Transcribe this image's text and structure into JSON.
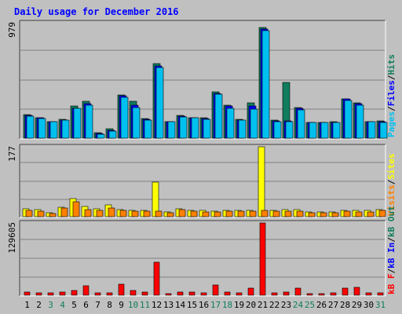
{
  "colors": {
    "frame_bg": "#c0c0c0",
    "plot_bg": "#c0c0c0",
    "grid": "#808080",
    "title": "#0000ff",
    "pages": "#107d5e",
    "files": "#0000ff",
    "hits": "#00c0f0",
    "visits": "#ffff00",
    "sites": "#ff8000",
    "kbf": "#ff0000",
    "kbin": "#0000ff",
    "kbout": "#107d5e",
    "day": "#000000",
    "weekend": "#107d5e"
  },
  "chart_data": [
    {
      "type": "bar",
      "title": "Daily usage for December 2016",
      "days": [
        "1",
        "2",
        "3",
        "4",
        "5",
        "6",
        "7",
        "8",
        "9",
        "10",
        "11",
        "12",
        "13",
        "14",
        "15",
        "16",
        "17",
        "18",
        "19",
        "20",
        "21",
        "22",
        "23",
        "24",
        "25",
        "26",
        "27",
        "28",
        "29",
        "30",
        "31"
      ],
      "weekend_days": [
        "3",
        "4",
        "10",
        "11",
        "17",
        "18",
        "24",
        "25",
        "31"
      ],
      "ymax_label": "979",
      "ymax": 979,
      "legend": [
        "Pages",
        "/",
        "Files",
        "/",
        "Hits"
      ],
      "series": [
        {
          "name": "Pages",
          "values": [
            200,
            175,
            140,
            160,
            270,
            310,
            45,
            80,
            365,
            310,
            165,
            630,
            140,
            190,
            175,
            170,
            390,
            280,
            160,
            300,
            940,
            150,
            470,
            260,
            135,
            135,
            140,
            335,
            300,
            140,
            145
          ]
        },
        {
          "name": "Files",
          "values": [
            195,
            170,
            140,
            155,
            255,
            290,
            40,
            65,
            360,
            280,
            160,
            615,
            140,
            185,
            170,
            165,
            380,
            270,
            155,
            270,
            925,
            145,
            145,
            250,
            130,
            130,
            135,
            330,
            290,
            140,
            140
          ]
        },
        {
          "name": "Hits",
          "values": [
            185,
            165,
            140,
            150,
            250,
            280,
            35,
            60,
            345,
            260,
            155,
            600,
            140,
            180,
            170,
            160,
            370,
            255,
            150,
            245,
            910,
            140,
            140,
            240,
            130,
            130,
            130,
            320,
            280,
            140,
            135
          ]
        }
      ]
    },
    {
      "type": "bar",
      "days_ref": "same",
      "ymax_label": "177",
      "ymax": 177,
      "legend": [
        "Visits",
        "/",
        "Sites"
      ],
      "series": [
        {
          "name": "Visits",
          "values": [
            20,
            18,
            9,
            23,
            45,
            25,
            20,
            30,
            18,
            15,
            15,
            88,
            11,
            20,
            16,
            15,
            14,
            16,
            16,
            16,
            177,
            15,
            18,
            17,
            11,
            11,
            12,
            15,
            15,
            15,
            17
          ]
        },
        {
          "name": "Sites",
          "values": [
            15,
            14,
            7,
            21,
            38,
            18,
            16,
            21,
            15,
            13,
            13,
            14,
            9,
            18,
            14,
            12,
            11,
            13,
            13,
            13,
            16,
            13,
            14,
            14,
            10,
            10,
            10,
            13,
            12,
            12,
            16
          ]
        }
      ]
    },
    {
      "type": "bar",
      "days_ref": "same",
      "ymax_label": "129605",
      "ymax": 129605,
      "legend": [
        "kB F",
        "/",
        "kB In",
        "/",
        "kB Out"
      ],
      "series": [
        {
          "name": "kB F",
          "values": [
            6000,
            4000,
            4000,
            5000,
            9000,
            17000,
            4000,
            4000,
            20000,
            9000,
            5000,
            59000,
            3000,
            6000,
            5000,
            4000,
            19000,
            5000,
            4000,
            12000,
            129605,
            4000,
            5000,
            13000,
            3000,
            3000,
            4000,
            12000,
            14000,
            4000,
            4000
          ]
        }
      ]
    }
  ]
}
